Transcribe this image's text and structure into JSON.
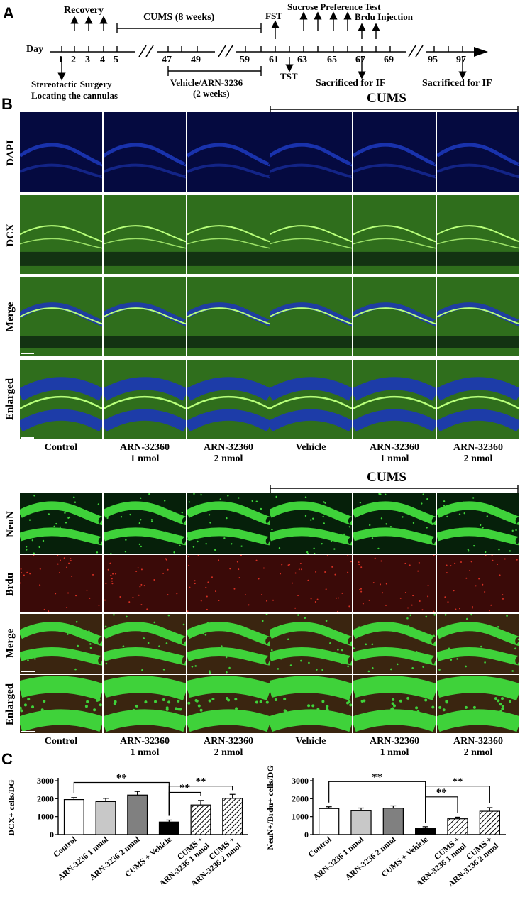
{
  "panel_labels": {
    "a": "A",
    "b": "B",
    "c": "C"
  },
  "timeline": {
    "day_label": "Day",
    "ticks": [
      "1",
      "2",
      "3",
      "4",
      "5",
      "47",
      "49",
      "59",
      "61",
      "63",
      "65",
      "67",
      "69",
      "95",
      "97"
    ],
    "recovery": "Recovery",
    "cums": "CUMS (8 weeks)",
    "fst": "FST",
    "sucrose": "Sucrose Preference Test",
    "brdu": "Brdu Injection",
    "surgery": "Stereotactic Surgery",
    "cannulas": "Locating the cannulas",
    "vehicle": "Vehicle/ARN-3236",
    "two_weeks": "(2 weeks)",
    "tst": "TST",
    "sacrificed_1": "Sacrificed for IF",
    "sacrificed_2": "Sacrificed for IF"
  },
  "cums_header": "CUMS",
  "groups": [
    {
      "line1": "Control",
      "line2": ""
    },
    {
      "line1": "ARN-32360",
      "line2": "1 nmol"
    },
    {
      "line1": "ARN-32360",
      "line2": "2 nmol"
    },
    {
      "line1": "Vehicle",
      "line2": ""
    },
    {
      "line1": "ARN-32360",
      "line2": "1 nmol"
    },
    {
      "line1": "ARN-32360",
      "line2": "2 nmol"
    }
  ],
  "rows_b1": [
    "DAPI",
    "DCX",
    "Merge",
    "Enlarged"
  ],
  "rows_b2": [
    "NeuN",
    "Brdu",
    "Merge",
    "Enlarged"
  ],
  "colors": {
    "dapi_bg": "#050a40",
    "dapi_band": "#1c36b8",
    "dcx_bg": "#2f6e1c",
    "dcx_line": "#b8ff7a",
    "neun_bg": "#06200a",
    "neun_band": "#3fd23a",
    "brdu_bg": "#3a0a08",
    "brdu_dot": "#ff3a2a",
    "merge2_bg": "#3a2510"
  },
  "chart_data": [
    {
      "type": "bar",
      "ylabel": "DCX+ cells/DG",
      "ylim": [
        0,
        3000
      ],
      "yticks": [
        "0",
        "1000",
        "2000",
        "3000"
      ],
      "categories": [
        "Control",
        "ARN-3236 1 nmol",
        "ARN-3236 2 nmol",
        "CUMS + Vehicle",
        "CUMS + ARN-3236 1 nmol",
        "CUMS + ARN-3236 2 nmol"
      ],
      "values": [
        1950,
        1840,
        2200,
        700,
        1650,
        2020
      ],
      "errors": [
        110,
        180,
        200,
        110,
        250,
        220
      ],
      "fills": [
        "white",
        "lightgray",
        "gray",
        "black",
        "hatched",
        "hatched"
      ],
      "significance": "**",
      "xtick_labels": [
        {
          "l1": "Control",
          "l2": ""
        },
        {
          "l1": "ARN-3236 1 nmol",
          "l2": ""
        },
        {
          "l1": "ARN-3236 2 nmol",
          "l2": ""
        },
        {
          "l1": "CUMS + Vehicle",
          "l2": ""
        },
        {
          "l1": "CUMS +",
          "l2": "ARN-3236 1 nmol"
        },
        {
          "l1": "CUMS +",
          "l2": "ARN-3236 2 nmol"
        }
      ]
    },
    {
      "type": "bar",
      "ylabel": "NeuN+/Brdu+ cells/DG",
      "ylim": [
        0,
        3000
      ],
      "yticks": [
        "0",
        "1000",
        "2000",
        "3000"
      ],
      "categories": [
        "Control",
        "ARN-3236 1 nmol",
        "ARN-3236 2 nmol",
        "CUMS + Vehicle",
        "CUMS + ARN-3236 1 nmol",
        "CUMS + ARN-3236 2 nmol"
      ],
      "values": [
        1450,
        1330,
        1470,
        370,
        880,
        1300
      ],
      "errors": [
        100,
        150,
        130,
        70,
        90,
        200
      ],
      "fills": [
        "white",
        "lightgray",
        "gray",
        "black",
        "hatched",
        "hatched"
      ],
      "significance": "**",
      "xtick_labels": [
        {
          "l1": "Control",
          "l2": ""
        },
        {
          "l1": "ARN-3236 1 nmol",
          "l2": ""
        },
        {
          "l1": "ARN-3236 2 nmol",
          "l2": ""
        },
        {
          "l1": "CUMS + Vehicle",
          "l2": ""
        },
        {
          "l1": "CUMS +",
          "l2": "ARN-3236 1 nmol"
        },
        {
          "l1": "CUMS +",
          "l2": "ARN-3236 2 nmol"
        }
      ]
    }
  ]
}
